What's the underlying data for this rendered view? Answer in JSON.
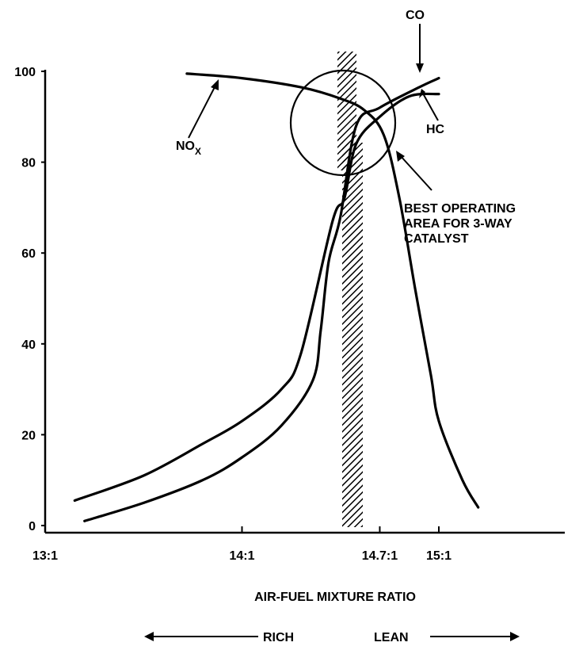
{
  "chart_data": {
    "type": "line",
    "xlabel": "AIR-FUEL MIXTURE RATIO",
    "x_ticks": [
      "13:1",
      "14:1",
      "14.7:1",
      "15:1"
    ],
    "y_ticks": [
      "0",
      "20",
      "40",
      "60",
      "80",
      "100"
    ],
    "ylim": [
      0,
      100
    ],
    "xlim": [
      13,
      15.7
    ],
    "series": [
      {
        "name": "NOₓ",
        "points": [
          [
            13.72,
            99.5
          ],
          [
            14.0,
            98.5
          ],
          [
            14.3,
            96.5
          ],
          [
            14.5,
            94
          ],
          [
            14.62,
            91.5
          ],
          [
            14.72,
            86
          ],
          [
            14.8,
            72
          ],
          [
            14.88,
            52
          ],
          [
            14.96,
            33
          ],
          [
            15.0,
            23
          ],
          [
            15.12,
            10
          ],
          [
            15.2,
            4
          ]
        ]
      },
      {
        "name": "CO",
        "points": [
          [
            13.2,
            1
          ],
          [
            13.5,
            5
          ],
          [
            13.8,
            10
          ],
          [
            14.0,
            15
          ],
          [
            14.2,
            22
          ],
          [
            14.36,
            32
          ],
          [
            14.4,
            43
          ],
          [
            14.44,
            58
          ],
          [
            14.5,
            68
          ],
          [
            14.58,
            88
          ],
          [
            14.7,
            92
          ],
          [
            14.9,
            96.5
          ],
          [
            15.0,
            98.5
          ]
        ]
      },
      {
        "name": "HC",
        "points": [
          [
            13.15,
            5.5
          ],
          [
            13.5,
            11
          ],
          [
            13.8,
            18
          ],
          [
            14.0,
            23
          ],
          [
            14.2,
            30
          ],
          [
            14.3,
            38
          ],
          [
            14.46,
            67
          ],
          [
            14.52,
            72
          ],
          [
            14.58,
            84
          ],
          [
            14.7,
            90
          ],
          [
            14.85,
            94.5
          ],
          [
            15.0,
            95
          ]
        ]
      }
    ],
    "stoichiometric_band": {
      "x_center": 14.7,
      "label": "14.7:1"
    },
    "operating_circle": {
      "center_x": 14.73,
      "center_y": 86.5
    },
    "annotations": {
      "co": "CO",
      "hc": "HC",
      "nox": "NO",
      "nox_sub": "X",
      "best_area": [
        "BEST OPERATING",
        "AREA FOR 3-WAY",
        "CATALYST"
      ]
    },
    "direction": {
      "rich": "RICH",
      "lean": "LEAN"
    },
    "grid": false
  }
}
